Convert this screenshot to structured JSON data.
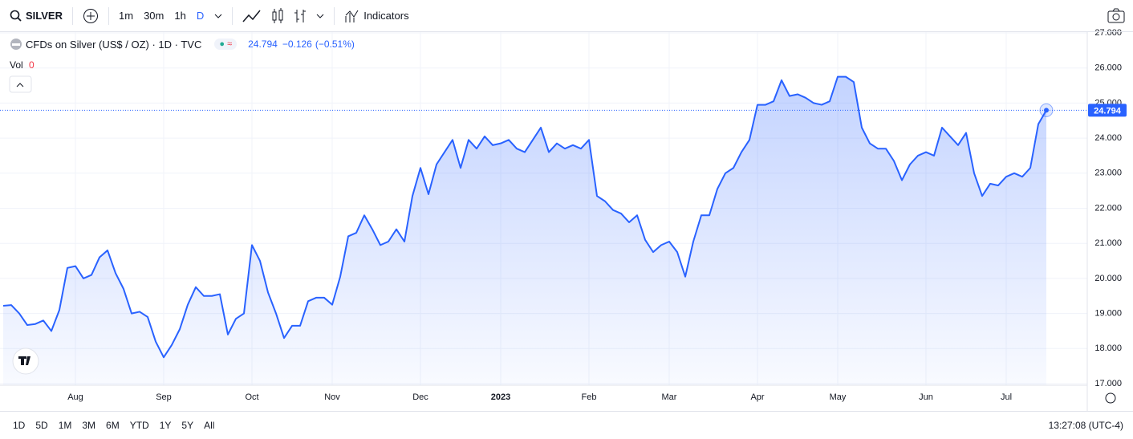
{
  "toolbar": {
    "symbol": "SILVER",
    "intervals": [
      "1m",
      "30m",
      "1h",
      "D"
    ],
    "indicators": "Indicators"
  },
  "legend": {
    "description": "CFDs on Silver (US$ / OZ) · 1D · TVC",
    "change": "−0.126",
    "change_percent": "(−0.51%)",
    "volume_label": "Vol",
    "volume_value": "0"
  },
  "ranges": [
    "1D",
    "5D",
    "1M",
    "3M",
    "6M",
    "YTD",
    "1Y",
    "5Y",
    "All"
  ],
  "clock": "13:27:08 (UTC-4)",
  "chart_data": {
    "type": "area",
    "color": "#2962ff",
    "categories": [
      null,
      null,
      null,
      null,
      null,
      null,
      null,
      null,
      null,
      "Aug",
      null,
      null,
      null,
      null,
      null,
      null,
      null,
      null,
      null,
      null,
      "Sep",
      null,
      null,
      null,
      null,
      null,
      null,
      null,
      null,
      null,
      null,
      "Oct",
      null,
      null,
      null,
      null,
      null,
      null,
      null,
      null,
      null,
      "Nov",
      null,
      null,
      null,
      null,
      null,
      null,
      null,
      null,
      null,
      null,
      "Dec",
      null,
      null,
      null,
      null,
      null,
      null,
      null,
      null,
      null,
      "2023",
      null,
      null,
      null,
      null,
      null,
      null,
      null,
      null,
      null,
      null,
      "Feb",
      null,
      null,
      null,
      null,
      null,
      null,
      null,
      null,
      null,
      "Mar",
      null,
      null,
      null,
      null,
      null,
      null,
      null,
      null,
      null,
      null,
      "Apr",
      null,
      null,
      null,
      null,
      null,
      null,
      null,
      null,
      null,
      "May",
      null,
      null,
      null,
      null,
      null,
      null,
      null,
      null,
      null,
      null,
      "Jun",
      null,
      null,
      null,
      null,
      null,
      null,
      null,
      null,
      null,
      "Jul",
      null,
      null,
      null,
      null,
      null
    ],
    "values": [
      19.22,
      19.24,
      19.0,
      18.67,
      18.7,
      18.8,
      18.5,
      19.1,
      20.3,
      20.35,
      20.0,
      20.1,
      20.6,
      20.8,
      20.15,
      19.7,
      19.0,
      19.05,
      18.9,
      18.2,
      17.75,
      18.1,
      18.55,
      19.25,
      19.75,
      19.5,
      19.5,
      19.55,
      18.4,
      18.85,
      19.0,
      20.95,
      20.5,
      19.6,
      19.0,
      18.3,
      18.65,
      18.65,
      19.35,
      19.45,
      19.45,
      19.25,
      20.05,
      21.2,
      21.3,
      21.8,
      21.4,
      20.95,
      21.05,
      21.4,
      21.05,
      22.35,
      23.15,
      22.4,
      23.25,
      23.6,
      23.95,
      23.15,
      23.95,
      23.7,
      24.05,
      23.8,
      23.85,
      23.95,
      23.7,
      23.6,
      23.95,
      24.3,
      23.6,
      23.85,
      23.7,
      23.8,
      23.7,
      23.95,
      22.35,
      22.2,
      21.95,
      21.85,
      21.6,
      21.8,
      21.1,
      20.75,
      20.95,
      21.05,
      20.75,
      20.05,
      21.05,
      21.8,
      21.8,
      22.55,
      23.0,
      23.15,
      23.6,
      23.95,
      24.95,
      24.95,
      25.05,
      25.65,
      25.2,
      25.25,
      25.15,
      25.0,
      24.95,
      25.05,
      25.75,
      25.75,
      25.6,
      24.3,
      23.85,
      23.7,
      23.7,
      23.35,
      22.8,
      23.25,
      23.5,
      23.6,
      23.5,
      24.3,
      24.05,
      23.8,
      24.15,
      23.0,
      22.35,
      22.7,
      22.65,
      22.9,
      23.0,
      22.9,
      23.15,
      24.4,
      24.794
    ],
    "ylim": [
      17,
      27
    ],
    "yticks": [
      {
        "value": 17,
        "label": "17.000"
      },
      {
        "value": 18,
        "label": "18.000"
      },
      {
        "value": 19,
        "label": "19.000"
      },
      {
        "value": 20,
        "label": "20.000"
      },
      {
        "value": 21,
        "label": "21.000"
      },
      {
        "value": 22,
        "label": "22.000"
      },
      {
        "value": 23,
        "label": "23.000"
      },
      {
        "value": 24,
        "label": "24.000"
      },
      {
        "value": 25,
        "label": "25.000"
      },
      {
        "value": 26,
        "label": "26.000"
      },
      {
        "value": 27,
        "label": "27.000"
      }
    ],
    "grid": true
  }
}
